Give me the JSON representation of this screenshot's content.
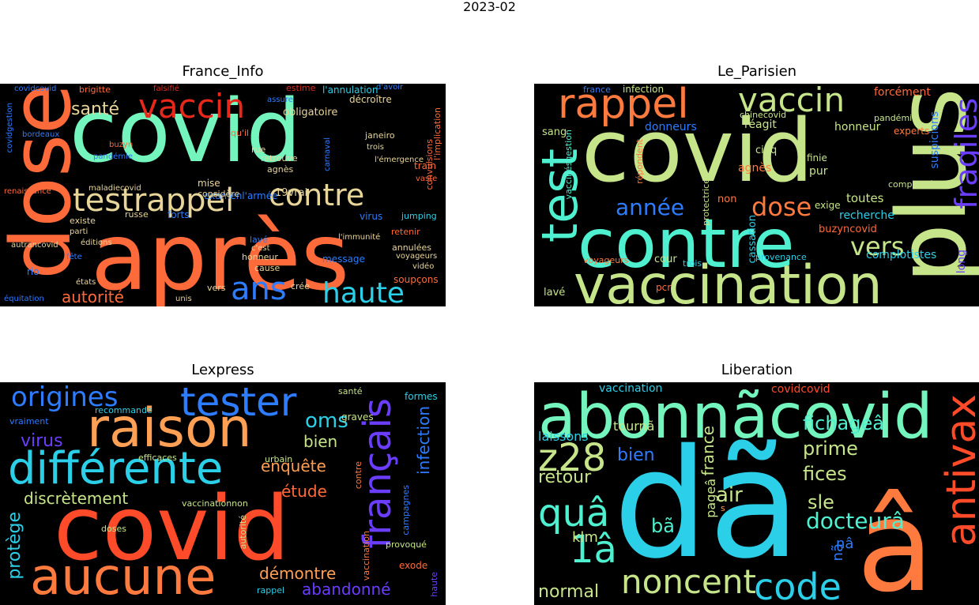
{
  "figure": {
    "suptitle": "2023-02"
  },
  "panels": [
    {
      "title": "France_Info",
      "words": [
        {
          "t": "covid",
          "c": "#74f5bd"
        },
        {
          "t": "après",
          "c": "#ff6a3b"
        },
        {
          "t": "dose",
          "c": "#ff6a3b"
        },
        {
          "t": "vaccin",
          "c": "#e8281a"
        },
        {
          "t": "testrappel",
          "c": "#e8d59a"
        },
        {
          "t": "contre",
          "c": "#e8d59a"
        },
        {
          "t": "ans",
          "c": "#2e7cff"
        },
        {
          "t": "haute",
          "c": "#2bd0e8"
        },
        {
          "t": "autorité",
          "c": "#ff6a3b"
        },
        {
          "t": "santé",
          "c": "#e8d59a"
        },
        {
          "t": "obligatoire",
          "c": "#e8d59a"
        },
        {
          "t": "décroître",
          "c": "#e8d59a"
        },
        {
          "t": "l'annulation",
          "c": "#2bd0e8"
        },
        {
          "t": "brigitte",
          "c": "#ff6a3b"
        },
        {
          "t": "covidgestion",
          "c": "#2e7cff"
        },
        {
          "t": "pandémie",
          "c": "#2e7cff"
        },
        {
          "t": "bordeaux",
          "c": "#2e7cff"
        },
        {
          "t": "buzyn",
          "c": "#ff6a3b"
        },
        {
          "t": "retrouve",
          "c": "#e8d59a"
        },
        {
          "t": "agnès",
          "c": "#e8d59a"
        },
        {
          "t": "carnaval",
          "c": "#2e7cff"
        },
        {
          "t": "train",
          "c": "#ff6a3b"
        },
        {
          "t": "convulsions",
          "c": "#ff6a3b"
        },
        {
          "t": "l'implication",
          "c": "#ff6a3b"
        },
        {
          "t": "janeiro",
          "c": "#e8d59a"
        },
        {
          "t": "19vrai",
          "c": "#e8d59a"
        },
        {
          "t": "examenl'armée",
          "c": "#2e7cff"
        },
        {
          "t": "forts",
          "c": "#2e7cff"
        },
        {
          "t": "russe",
          "c": "#e8d59a"
        },
        {
          "t": "renaissance",
          "c": "#ff6a3b"
        },
        {
          "t": "existe",
          "c": "#e8d59a"
        },
        {
          "t": "parti",
          "c": "#e8d59a"
        },
        {
          "t": "éditions",
          "c": "#e8d59a"
        },
        {
          "t": "virus",
          "c": "#2e7cff"
        },
        {
          "t": "jumping",
          "c": "#2bd0e8"
        },
        {
          "t": "retenir",
          "c": "#ff6a3b"
        },
        {
          "t": "annulées",
          "c": "#e8d59a"
        },
        {
          "t": "voyageurs",
          "c": "#e8d59a"
        },
        {
          "t": "vidéo",
          "c": "#e8d59a"
        },
        {
          "t": "soupçons",
          "c": "#ff6a3b"
        },
        {
          "t": "cause",
          "c": "#e8d59a"
        },
        {
          "t": "crée",
          "c": "#e8d59a"
        },
        {
          "t": "message",
          "c": "#2e7cff"
        },
        {
          "t": "honneur",
          "c": "#e8d59a"
        },
        {
          "t": "lavé",
          "c": "#2e7cff"
        },
        {
          "t": "c'est",
          "c": "#e8d59a"
        },
        {
          "t": "autrancovid",
          "c": "#e8d59a"
        },
        {
          "t": "rio",
          "c": "#2e7cff"
        },
        {
          "t": "équitation",
          "c": "#2e7cff"
        },
        {
          "t": "états",
          "c": "#e8d59a"
        },
        {
          "t": "fête",
          "c": "#2e7cff"
        },
        {
          "t": "vers",
          "c": "#e8d59a"
        },
        {
          "t": "unis",
          "c": "#e8d59a"
        },
        {
          "t": "considère",
          "c": "#e8d59a"
        },
        {
          "t": "mise",
          "c": "#e8d59a"
        },
        {
          "t": "qu'il",
          "c": "#ff6a3b"
        },
        {
          "t": "rue",
          "c": "#e8d59a"
        },
        {
          "t": "assure",
          "c": "#2e7cff"
        },
        {
          "t": "estime",
          "c": "#e8281a"
        },
        {
          "t": "d'avoir",
          "c": "#2e7cff"
        },
        {
          "t": "falsifié",
          "c": "#e8281a"
        },
        {
          "t": "covidcovid",
          "c": "#2e7cff"
        },
        {
          "t": "maladiecovid",
          "c": "#e8d59a"
        },
        {
          "t": "l'immunité",
          "c": "#e8d59a"
        },
        {
          "t": "l'émergence",
          "c": "#e8d59a"
        },
        {
          "t": "trois",
          "c": "#e8d59a"
        },
        {
          "t": "vaste",
          "c": "#ff6a3b"
        },
        {
          "t": "qu'un",
          "c": "#2e7cff"
        }
      ]
    },
    {
      "title": "Le_Parisien",
      "words": [
        {
          "t": "covid",
          "c": "#c6e58a"
        },
        {
          "t": "contre",
          "c": "#4ff0d0"
        },
        {
          "t": "vaccination",
          "c": "#c6e58a"
        },
        {
          "t": "plus",
          "c": "#c6e58a"
        },
        {
          "t": "rappel",
          "c": "#ff7a3f"
        },
        {
          "t": "vaccin",
          "c": "#c6e58a"
        },
        {
          "t": "test",
          "c": "#4ff0d0"
        },
        {
          "t": "fragiles",
          "c": "#6a3dff"
        },
        {
          "t": "année",
          "c": "#2e7cff"
        },
        {
          "t": "dose",
          "c": "#ff7a3f"
        },
        {
          "t": "vers",
          "c": "#c6e58a"
        },
        {
          "t": "forcément",
          "c": "#ff6a3b"
        },
        {
          "t": "suspicions",
          "c": "#2e7cff"
        },
        {
          "t": "experts",
          "c": "#ff7a3f"
        },
        {
          "t": "donneurs",
          "c": "#2e7cff"
        },
        {
          "t": "réagit",
          "c": "#c6e58a"
        },
        {
          "t": "honneur",
          "c": "#c6e58a"
        },
        {
          "t": "chinecovid",
          "c": "#c6e58a"
        },
        {
          "t": "pandémie",
          "c": "#c6e58a"
        },
        {
          "t": "sang",
          "c": "#c6e58a"
        },
        {
          "t": "vaccinésgestion",
          "c": "#4ff0d0"
        },
        {
          "t": "agnès",
          "c": "#ff7a3f"
        },
        {
          "t": "cinq",
          "c": "#c6e58a"
        },
        {
          "t": "finie",
          "c": "#c6e58a"
        },
        {
          "t": "pur",
          "c": "#c6e58a"
        },
        {
          "t": "toutes",
          "c": "#c6e58a"
        },
        {
          "t": "compliqué",
          "c": "#c6e58a"
        },
        {
          "t": "exige",
          "c": "#c6e58a"
        },
        {
          "t": "recherche",
          "c": "#2bd0e8"
        },
        {
          "t": "buzyncovid",
          "c": "#ff6a3b"
        },
        {
          "t": "complotistes",
          "c": "#2bd0e8"
        },
        {
          "t": "long",
          "c": "#6a3dff"
        },
        {
          "t": "non",
          "c": "#ff7a3f"
        },
        {
          "t": "protectrice",
          "c": "#c6e58a"
        },
        {
          "t": "cassation",
          "c": "#2bd0e8"
        },
        {
          "t": "provenance",
          "c": "#2bd0e8"
        },
        {
          "t": "cour",
          "c": "#c6e58a"
        },
        {
          "t": "trois",
          "c": "#2bd0e8"
        },
        {
          "t": "voyageurs",
          "c": "#ff7a3f"
        },
        {
          "t": "lavé",
          "c": "#c6e58a"
        },
        {
          "t": "pcr",
          "c": "#ff6a3b"
        },
        {
          "t": "infection",
          "c": "#c6e58a"
        },
        {
          "t": "france",
          "c": "#2e7cff"
        },
        {
          "t": "répondent",
          "c": "#ff7a3f"
        }
      ]
    },
    {
      "title": "Lexpress",
      "words": [
        {
          "t": "covid",
          "c": "#ff4b2a"
        },
        {
          "t": "raison",
          "c": "#ffa055"
        },
        {
          "t": "aucune",
          "c": "#ff7a3f"
        },
        {
          "t": "différente",
          "c": "#2bd0e8"
        },
        {
          "t": "tester",
          "c": "#2e7cff"
        },
        {
          "t": "origines",
          "c": "#2e7cff"
        },
        {
          "t": "français",
          "c": "#6a3dff"
        },
        {
          "t": "infection",
          "c": "#2e7cff"
        },
        {
          "t": "oms",
          "c": "#2bd0e8"
        },
        {
          "t": "bien",
          "c": "#c6e58a"
        },
        {
          "t": "enquête",
          "c": "#ffa055"
        },
        {
          "t": "étude",
          "c": "#ff6a3b"
        },
        {
          "t": "discrètement",
          "c": "#c6e58a"
        },
        {
          "t": "virus",
          "c": "#6a3dff"
        },
        {
          "t": "protège",
          "c": "#2bd0e8"
        },
        {
          "t": "démontre",
          "c": "#ffa055"
        },
        {
          "t": "abandonné",
          "c": "#6a3dff"
        },
        {
          "t": "vraiment",
          "c": "#2e7cff"
        },
        {
          "t": "recommande",
          "c": "#2bd0e8"
        },
        {
          "t": "efficaces",
          "c": "#c6e58a"
        },
        {
          "t": "urbain",
          "c": "#c6e58a"
        },
        {
          "t": "vaccinationnon",
          "c": "#c6e58a"
        },
        {
          "t": "doses",
          "c": "#c6e58a"
        },
        {
          "t": "graves",
          "c": "#c6e58a"
        },
        {
          "t": "santé",
          "c": "#c6e58a"
        },
        {
          "t": "formes",
          "c": "#2bd0e8"
        },
        {
          "t": "campagnes",
          "c": "#2e7cff"
        },
        {
          "t": "provoqué",
          "c": "#c6e58a"
        },
        {
          "t": "exode",
          "c": "#ff6a3b"
        },
        {
          "t": "haute",
          "c": "#6a3dff"
        },
        {
          "t": "rappel",
          "c": "#2bd0e8"
        },
        {
          "t": "autorité",
          "c": "#c6e58a"
        },
        {
          "t": "contre",
          "c": "#ff7a3f"
        },
        {
          "t": "vaccination",
          "c": "#ff7a3f"
        }
      ]
    },
    {
      "title": "Liberation",
      "words": [
        {
          "t": "dã",
          "c": "#2bd0e8"
        },
        {
          "t": "â",
          "c": "#ff7a3f"
        },
        {
          "t": "abonnãcovid",
          "c": "#74f5bd"
        },
        {
          "t": "antivax",
          "c": "#ff4b2a"
        },
        {
          "t": "code",
          "c": "#2bd0e8"
        },
        {
          "t": "noncent",
          "c": "#c6e58a"
        },
        {
          "t": "quâ",
          "c": "#4ff0d0"
        },
        {
          "t": "z28",
          "c": "#c6e58a"
        },
        {
          "t": "1â",
          "c": "#4ff0d0"
        },
        {
          "t": "docteurâ",
          "c": "#4ff0d0"
        },
        {
          "t": "retour",
          "c": "#c6e58a"
        },
        {
          "t": "fichageâ",
          "c": "#4ff0d0"
        },
        {
          "t": "prime",
          "c": "#c6e58a"
        },
        {
          "t": "fices",
          "c": "#c6e58a"
        },
        {
          "t": "sle",
          "c": "#c6e58a"
        },
        {
          "t": "air",
          "c": "#c6e58a"
        },
        {
          "t": "bien",
          "c": "#2e7cff"
        },
        {
          "t": "tournã",
          "c": "#c6e58a"
        },
        {
          "t": "laissons",
          "c": "#2bd0e8"
        },
        {
          "t": "vaccination",
          "c": "#2bd0e8"
        },
        {
          "t": "covidcovid",
          "c": "#ff4b2a"
        },
        {
          "t": "france",
          "c": "#c6e58a"
        },
        {
          "t": "pageâ",
          "c": "#c6e58a"
        },
        {
          "t": "klm",
          "c": "#c6e58a"
        },
        {
          "t": "bã",
          "c": "#4ff0d0"
        },
        {
          "t": "normal",
          "c": "#c6e58a"
        },
        {
          "t": "nâ",
          "c": "#2e7cff"
        },
        {
          "t": "nã",
          "c": "#2e7cff"
        },
        {
          "t": "s",
          "c": "#ffa055"
        }
      ]
    }
  ]
}
